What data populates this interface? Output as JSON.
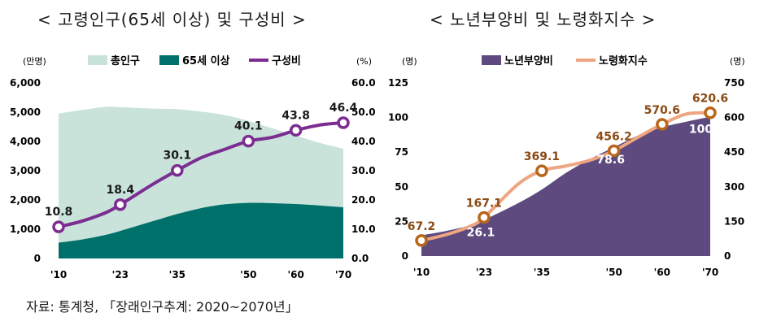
{
  "titles": {
    "left": "< 고령인구(65세 이상) 및 구성비 >",
    "right": "< 노년부양비 및 노령화지수 >"
  },
  "source": "자료: 통계청, 「장래인구추계: 2020~2070년」",
  "colors": {
    "total_population": "#c9e3da",
    "elderly_population": "#00706a",
    "composition_ratio": "#7b2d91",
    "dependency_ratio": "#5e4a7e",
    "aging_index": "#eea581",
    "aging_marker_stroke": "#b8661a",
    "aging_label": "#8a4a14"
  },
  "chart_data": [
    {
      "type": "area",
      "x_labels": [
        "'10",
        "'23",
        "'35",
        "'50",
        "'60",
        "'70"
      ],
      "x": [
        2010,
        2023,
        2035,
        2050,
        2060,
        2070
      ],
      "y_left_unit": "(만명)",
      "y_right_unit": "(%)",
      "y_left_ticks": [
        "0",
        "1,000",
        "2,000",
        "3,000",
        "4,000",
        "5,000",
        "6,000"
      ],
      "y_right_ticks": [
        "0.0",
        "10.0",
        "20.0",
        "30.0",
        "40.0",
        "50.0",
        "60.0"
      ],
      "y_left_range": [
        0,
        6000
      ],
      "y_right_range": [
        0,
        60
      ],
      "legend_position": "top",
      "series": [
        {
          "name": "총인구",
          "type": "area",
          "axis": "left",
          "x": [
            2010,
            2015,
            2020,
            2023,
            2030,
            2035,
            2040,
            2045,
            2050,
            2055,
            2060,
            2065,
            2070
          ],
          "values": [
            4950,
            5080,
            5180,
            5170,
            5120,
            5100,
            5020,
            4900,
            4700,
            4450,
            4200,
            3950,
            3750
          ]
        },
        {
          "name": "65세 이상",
          "type": "area",
          "axis": "left",
          "x": [
            2010,
            2015,
            2020,
            2023,
            2030,
            2035,
            2040,
            2045,
            2050,
            2055,
            2060,
            2065,
            2070
          ],
          "values": [
            540,
            650,
            810,
            940,
            1280,
            1520,
            1720,
            1850,
            1900,
            1890,
            1860,
            1810,
            1750
          ]
        },
        {
          "name": "구성비",
          "type": "line",
          "axis": "right",
          "x": [
            2010,
            2015,
            2020,
            2023,
            2030,
            2035,
            2040,
            2045,
            2050,
            2055,
            2060,
            2065,
            2070
          ],
          "values": [
            10.8,
            12.8,
            15.7,
            18.4,
            25.5,
            30.1,
            34.4,
            37.3,
            40.1,
            41.4,
            43.8,
            45.6,
            46.4
          ],
          "markers": [
            {
              "x": 2010,
              "value": 10.8,
              "label": "10.8"
            },
            {
              "x": 2023,
              "value": 18.4,
              "label": "18.4"
            },
            {
              "x": 2035,
              "value": 30.1,
              "label": "30.1"
            },
            {
              "x": 2050,
              "value": 40.1,
              "label": "40.1"
            },
            {
              "x": 2060,
              "value": 43.8,
              "label": "43.8"
            },
            {
              "x": 2070,
              "value": 46.4,
              "label": "46.4"
            }
          ]
        }
      ]
    },
    {
      "type": "area",
      "x_labels": [
        "'10",
        "'23",
        "'35",
        "'50",
        "'60",
        "'70"
      ],
      "x": [
        2010,
        2023,
        2035,
        2050,
        2060,
        2070
      ],
      "y_left_unit": "(명)",
      "y_right_unit": "(명)",
      "y_left_ticks": [
        "0",
        "25",
        "50",
        "75",
        "100",
        "125"
      ],
      "y_right_ticks": [
        "0",
        "150",
        "300",
        "450",
        "600",
        "750"
      ],
      "y_left_range": [
        0,
        125
      ],
      "y_right_range": [
        0,
        750
      ],
      "legend_position": "top",
      "series": [
        {
          "name": "노년부양비",
          "type": "area",
          "axis": "left",
          "x": [
            2010,
            2015,
            2020,
            2023,
            2030,
            2035,
            2040,
            2045,
            2050,
            2055,
            2060,
            2065,
            2070
          ],
          "values": [
            15,
            18,
            22,
            26.1,
            38,
            48,
            60,
            70,
            78.6,
            87,
            93,
            97,
            100.6
          ],
          "markers": [
            {
              "x": 2023,
              "value": 26.1,
              "label": "26.1"
            },
            {
              "x": 2050,
              "value": 78.6,
              "label": "78.6"
            },
            {
              "x": 2070,
              "value": 100.6,
              "label": "100.6"
            }
          ]
        },
        {
          "name": "노령화지수",
          "type": "line",
          "axis": "right",
          "x": [
            2010,
            2015,
            2020,
            2023,
            2030,
            2035,
            2040,
            2045,
            2050,
            2055,
            2060,
            2065,
            2070
          ],
          "values": [
            67.2,
            92,
            128,
            167.1,
            310,
            369.1,
            390,
            415,
            456.2,
            515,
            570.6,
            615,
            620.6
          ],
          "markers": [
            {
              "x": 2010,
              "value": 67.2,
              "label": "67.2"
            },
            {
              "x": 2023,
              "value": 167.1,
              "label": "167.1"
            },
            {
              "x": 2035,
              "value": 369.1,
              "label": "369.1"
            },
            {
              "x": 2050,
              "value": 456.2,
              "label": "456.2"
            },
            {
              "x": 2060,
              "value": 570.6,
              "label": "570.6"
            },
            {
              "x": 2070,
              "value": 620.6,
              "label": "620.6"
            }
          ]
        }
      ]
    }
  ]
}
